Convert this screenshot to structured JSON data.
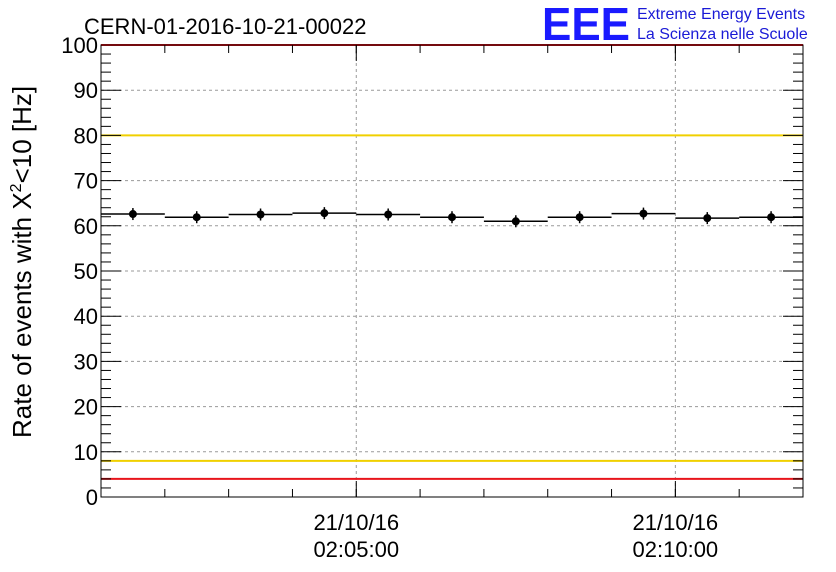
{
  "logo": {
    "mark": "EEE",
    "line1": "Extreme Energy Events",
    "line2": "La Scienza nelle Scuole",
    "color": "#1a1aff"
  },
  "chart_data": {
    "type": "scatter",
    "title": "CERN-01-2016-10-21-00022",
    "xlabel": "",
    "ylabel_prefix": "Rate of events with X",
    "ylabel_sup": "2",
    "ylabel_suffix": "<10 [Hz]",
    "ylim": [
      0,
      100
    ],
    "yticks": [
      "0",
      "10",
      "20",
      "30",
      "40",
      "50",
      "60",
      "70",
      "80",
      "90",
      "100"
    ],
    "xlim": [
      "02:01:00",
      "02:12:00"
    ],
    "xticks": [
      {
        "time": "02:05:00",
        "date_label": "21/10/16",
        "time_label": "02:05:00"
      },
      {
        "time": "02:10:00",
        "date_label": "21/10/16",
        "time_label": "02:10:00"
      }
    ],
    "grid": true,
    "reference_lines": [
      {
        "value": 100,
        "color": "#e8141b"
      },
      {
        "value": 80,
        "color": "#f0d000"
      },
      {
        "value": 8,
        "color": "#f0d000"
      },
      {
        "value": 4,
        "color": "#e8141b"
      }
    ],
    "bin_width_minutes": 1,
    "x": [
      "02:01:30",
      "02:02:30",
      "02:03:30",
      "02:04:30",
      "02:05:30",
      "02:06:30",
      "02:07:30",
      "02:08:30",
      "02:09:30",
      "02:10:30",
      "02:11:30"
    ],
    "values": [
      62.6,
      61.9,
      62.5,
      62.8,
      62.5,
      61.9,
      61.0,
      61.9,
      62.7,
      61.7,
      61.9
    ],
    "marker_color": "#000000"
  }
}
